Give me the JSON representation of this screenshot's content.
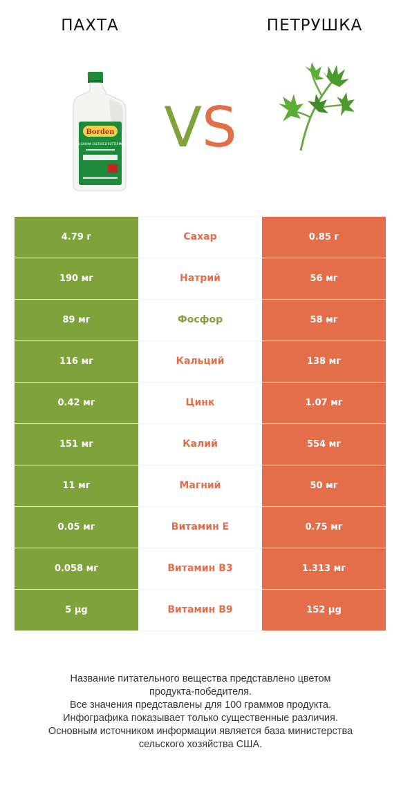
{
  "header": {
    "left_title": "ПАХТА",
    "right_title": "ПЕТРУШКА",
    "vs_v": "V",
    "vs_s": "S"
  },
  "colors": {
    "left": "#7ea33a",
    "right": "#e46e4a"
  },
  "images": {
    "left": "buttermilk-jug-image",
    "right": "parsley-sprig-image"
  },
  "jug_label": {
    "brand": "Borden",
    "text": "BULGARIAN CULTURED BUTTERMILK"
  },
  "rows": [
    {
      "left": "4.79 г",
      "nutrient": "Сахар",
      "right": "0.85 г",
      "winner": "right"
    },
    {
      "left": "190 мг",
      "nutrient": "Натрий",
      "right": "56 мг",
      "winner": "right"
    },
    {
      "left": "89 мг",
      "nutrient": "Фосфор",
      "right": "58 мг",
      "winner": "left"
    },
    {
      "left": "116 мг",
      "nutrient": "Кальций",
      "right": "138 мг",
      "winner": "right"
    },
    {
      "left": "0.42 мг",
      "nutrient": "Цинк",
      "right": "1.07 мг",
      "winner": "right"
    },
    {
      "left": "151 мг",
      "nutrient": "Калий",
      "right": "554 мг",
      "winner": "right"
    },
    {
      "left": "11 мг",
      "nutrient": "Магний",
      "right": "50 мг",
      "winner": "right"
    },
    {
      "left": "0.05 мг",
      "nutrient": "Витамин E",
      "right": "0.75 мг",
      "winner": "right"
    },
    {
      "left": "0.058 мг",
      "nutrient": "Витамин B3",
      "right": "1.313 мг",
      "winner": "right"
    },
    {
      "left": "5 µg",
      "nutrient": "Витамин B9",
      "right": "152 µg",
      "winner": "right"
    }
  ],
  "footnote": [
    "Название питательного вещества представлено цветом",
    "продукта-победителя.",
    "Все значения представлены для 100 граммов продукта.",
    "Инфографика показывает только существенные различия.",
    "Основным источником информации является база министерства",
    "сельского хозяйства США."
  ]
}
